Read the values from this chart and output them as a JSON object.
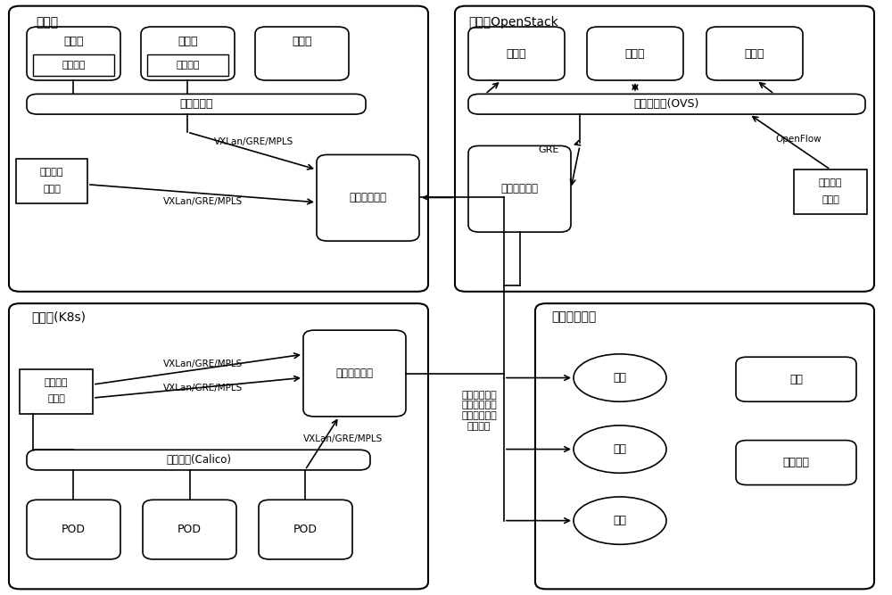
{
  "bg_color": "#ffffff",
  "public_cloud_label": "公有云",
  "private_cloud_label": "私有云OpenStack",
  "container_cloud_label": "容器云(K8s)",
  "monitor_label": "监控分析平台",
  "vm": "虚拟机",
  "flow_collect": "流量采集",
  "flow_ctrl_line1": "流量采集",
  "flow_ctrl_line2": "控制器",
  "vswitch": "虚拟交换机",
  "vswitch_ovs": "虚拟交换机(OVS)",
  "edge_node": "边缘计算节点",
  "vxlan": "VXLan/GRE/MPLS",
  "gre": "GRE",
  "openflow": "OpenFlow",
  "calico": "网络插件(Calico)",
  "pod": "POD",
  "stat": "统计",
  "alarm": "告警",
  "query": "查询",
  "config": "配置",
  "frontend": "前端展示",
  "center_label": "实时统计数据\n实时告警数据\n交互查询数据\n配置数据"
}
